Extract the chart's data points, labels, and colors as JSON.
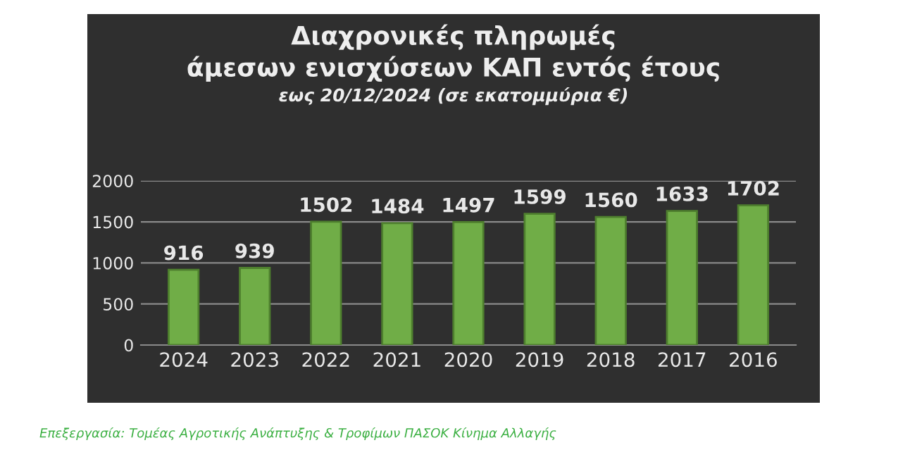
{
  "chart_data": {
    "type": "bar",
    "title": "Διαχρονικές πληρωμές\nάμεσων ενισχύσεων ΚΑΠ εντός έτους",
    "subtitle": "εως 20/12/2024 (σε εκατομμύρια €)",
    "categories": [
      "2024",
      "2023",
      "2022",
      "2021",
      "2020",
      "2019",
      "2018",
      "2017",
      "2016"
    ],
    "values": [
      916,
      939,
      1502,
      1484,
      1497,
      1599,
      1560,
      1633,
      1702
    ],
    "color": "#70ad47",
    "ylim": [
      0,
      2000
    ],
    "yticks": [
      0,
      500,
      1000,
      1500,
      2000
    ],
    "grid": "y",
    "data_labels": true,
    "annotations": [
      "Επεξεργασία: Τομέας Αγροτικής Ανάπτυξης & Τροφίμων ΠΑΣΟΚ Κίνημα Αλλαγής"
    ]
  }
}
